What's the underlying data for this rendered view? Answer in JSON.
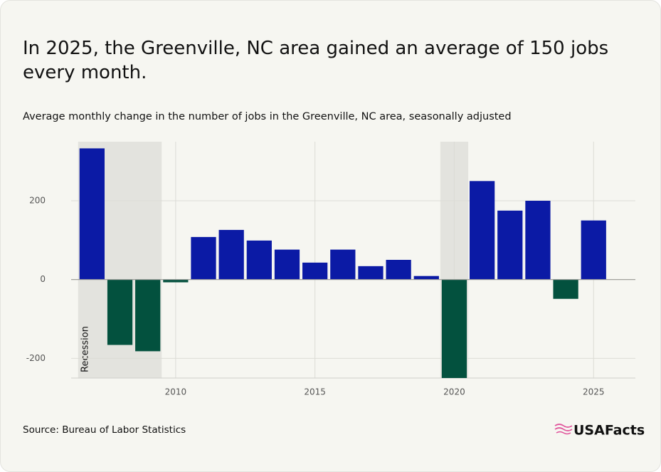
{
  "chart_data": {
    "type": "bar",
    "title": "In 2025, the Greenville, NC area gained an average of 150 jobs every month.",
    "subtitle": "Average monthly change in the number of jobs in the Greenville, NC area, seasonally adjusted",
    "source": "Source: Bureau of Labor Statistics",
    "logo": "USAFacts",
    "x": [
      2007,
      2008,
      2009,
      2010,
      2011,
      2012,
      2013,
      2014,
      2015,
      2016,
      2017,
      2018,
      2019,
      2020,
      2021,
      2022,
      2023,
      2024,
      2025
    ],
    "values": [
      333,
      -166,
      -182,
      -7,
      108,
      126,
      99,
      76,
      43,
      76,
      34,
      50,
      9,
      -250,
      250,
      175,
      200,
      -49,
      150
    ],
    "positive_color": "#0b1aa5",
    "negative_color": "#03513e",
    "xlim": [
      2006.25,
      2026.5
    ],
    "xticks": [
      2010,
      2015,
      2020,
      2025
    ],
    "ylim": [
      -250,
      350
    ],
    "yticks": [
      -200,
      0,
      200
    ],
    "grid": true,
    "shaded_label": "Recession",
    "shaded_regions": [
      {
        "start": 2006.5,
        "end": 2009.5
      },
      {
        "start": 2019.5,
        "end": 2020.5
      }
    ]
  }
}
